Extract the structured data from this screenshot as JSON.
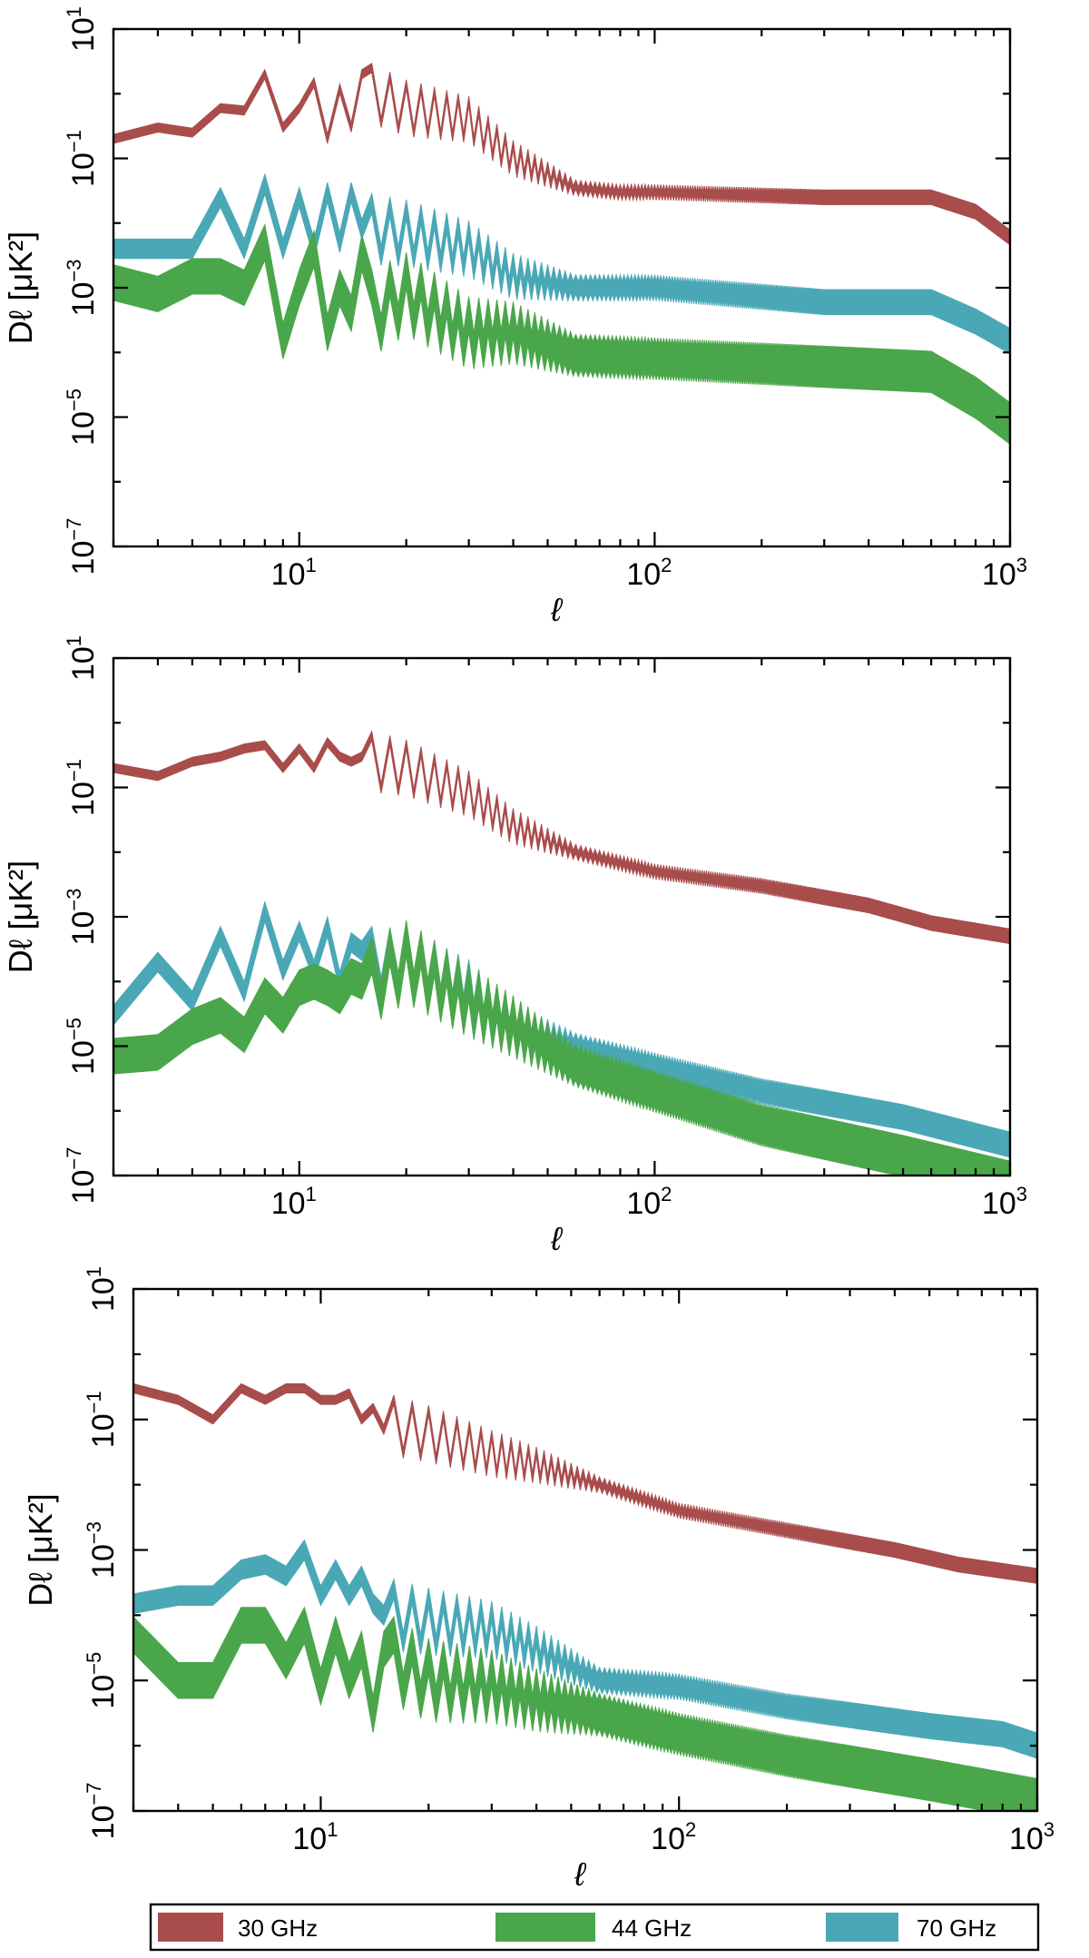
{
  "figure": {
    "legend": [
      {
        "label": "30 GHz",
        "color": "#a84c4c"
      },
      {
        "label": "44 GHz",
        "color": "#4aa64a"
      },
      {
        "label": "70 GHz",
        "color": "#4aa8b6"
      }
    ]
  },
  "chart_data": [
    {
      "type": "area",
      "title": "",
      "xlabel": "ℓ",
      "ylabel": "Dℓ [μK²]",
      "xscale": "log",
      "yscale": "log",
      "xlim": [
        3,
        1000
      ],
      "ylim": [
        1e-07,
        10
      ],
      "xticks": [
        {
          "base": "10",
          "exp": "1",
          "v": 10
        },
        {
          "base": "10",
          "exp": "2",
          "v": 100
        },
        {
          "base": "10",
          "exp": "3",
          "v": 1000
        }
      ],
      "yticks": [
        {
          "base": "10",
          "exp": "1",
          "v": 10
        },
        {
          "base": "10",
          "exp": "−1",
          "v": 0.1
        },
        {
          "base": "10",
          "exp": "−3",
          "v": 0.001
        },
        {
          "base": "10",
          "exp": "−5",
          "v": 1e-05
        },
        {
          "base": "10",
          "exp": "−7",
          "v": 1e-07
        }
      ],
      "series": [
        {
          "name": "30 GHz",
          "color": "#a84c4c",
          "lowell": [
            0.2,
            0.3,
            0.25,
            0.6,
            0.55,
            2.0,
            0.3,
            0.6,
            1.5,
            0.2,
            1.2,
            0.3,
            2.0
          ],
          "logband": 0.14,
          "startOsc": 16,
          "ctrl": [
            [
              16,
              1.0
            ],
            [
              20,
              0.6
            ],
            [
              30,
              0.4
            ],
            [
              40,
              0.1
            ],
            [
              60,
              0.035
            ],
            [
              80,
              0.03
            ],
            [
              100,
              0.03
            ],
            [
              300,
              0.025
            ],
            [
              600,
              0.025
            ],
            [
              800,
              0.015
            ],
            [
              1000,
              0.006
            ]
          ]
        },
        {
          "name": "70 GHz",
          "color": "#4aa8b6",
          "lowell": [
            0.004,
            0.004,
            0.004,
            0.025,
            0.004,
            0.04,
            0.004,
            0.025,
            0.004,
            0.03,
            0.005,
            0.03,
            0.008
          ],
          "logband": 0.3,
          "startOsc": 16,
          "ctrl": [
            [
              16,
              0.008
            ],
            [
              20,
              0.007
            ],
            [
              30,
              0.004
            ],
            [
              40,
              0.0015
            ],
            [
              60,
              0.001
            ],
            [
              100,
              0.001
            ],
            [
              300,
              0.0006
            ],
            [
              600,
              0.0006
            ],
            [
              800,
              0.0003
            ],
            [
              1000,
              0.00015
            ]
          ]
        },
        {
          "name": "44 GHz",
          "color": "#4aa64a",
          "lowell": [
            0.0012,
            0.0008,
            0.0015,
            0.0015,
            0.001,
            0.005,
            0.00015,
            0.001,
            0.004,
            0.0002,
            0.001,
            0.0004,
            0.0035
          ],
          "logband": 0.55,
          "startOsc": 16,
          "ctrl": [
            [
              16,
              0.0004
            ],
            [
              20,
              0.0008
            ],
            [
              30,
              0.0002
            ],
            [
              40,
              0.0002
            ],
            [
              60,
              9e-05
            ],
            [
              100,
              8e-05
            ],
            [
              300,
              6e-05
            ],
            [
              600,
              5e-05
            ],
            [
              800,
              2e-05
            ],
            [
              1000,
              8e-06
            ]
          ]
        }
      ]
    },
    {
      "type": "area",
      "title": "",
      "xlabel": "ℓ",
      "ylabel": "Dℓ [μK²]",
      "xscale": "log",
      "yscale": "log",
      "xlim": [
        3,
        1000
      ],
      "ylim": [
        1e-07,
        10
      ],
      "xticks": [
        {
          "base": "10",
          "exp": "1",
          "v": 10
        },
        {
          "base": "10",
          "exp": "2",
          "v": 100
        },
        {
          "base": "10",
          "exp": "3",
          "v": 1000
        }
      ],
      "yticks": [
        {
          "base": "10",
          "exp": "1",
          "v": 10
        },
        {
          "base": "10",
          "exp": "−1",
          "v": 0.1
        },
        {
          "base": "10",
          "exp": "−3",
          "v": 0.001
        },
        {
          "base": "10",
          "exp": "−5",
          "v": 1e-05
        },
        {
          "base": "10",
          "exp": "−7",
          "v": 1e-07
        }
      ],
      "series": [
        {
          "name": "30 GHz",
          "color": "#a84c4c",
          "lowell": [
            0.2,
            0.15,
            0.25,
            0.3,
            0.4,
            0.45,
            0.2,
            0.4,
            0.2,
            0.5,
            0.3,
            0.25,
            0.3
          ],
          "logband": 0.14,
          "startOsc": 16,
          "ctrl": [
            [
              16,
              0.25
            ],
            [
              20,
              0.2
            ],
            [
              30,
              0.08
            ],
            [
              40,
              0.025
            ],
            [
              60,
              0.01
            ],
            [
              100,
              0.005
            ],
            [
              200,
              0.003
            ],
            [
              400,
              0.0015
            ],
            [
              600,
              0.0008
            ],
            [
              1000,
              0.0005
            ]
          ]
        },
        {
          "name": "70 GHz",
          "color": "#4aa8b6",
          "lowell": [
            3e-05,
            0.0002,
            5e-05,
            0.0005,
            7e-05,
            0.0012,
            0.00015,
            0.0006,
            0.00015,
            0.0007,
            0.0001,
            0.0004,
            0.0003
          ],
          "logband": 0.3,
          "startOsc": 16,
          "ctrl": [
            [
              16,
              0.0002
            ],
            [
              20,
              0.0002
            ],
            [
              30,
              8e-05
            ],
            [
              40,
              2e-05
            ],
            [
              60,
              1e-05
            ],
            [
              100,
              5e-06
            ],
            [
              200,
              2e-06
            ],
            [
              500,
              8e-07
            ],
            [
              1000,
              3e-07
            ]
          ]
        },
        {
          "name": "44 GHz",
          "color": "#4aa64a",
          "lowell": [
            7e-06,
            8e-06,
            2e-05,
            3e-05,
            1.5e-05,
            6e-05,
            3e-05,
            8e-05,
            0.0001,
            8e-05,
            6e-05,
            0.00012,
            0.0001
          ],
          "logband": 0.55,
          "startOsc": 16,
          "ctrl": [
            [
              16,
              0.0001
            ],
            [
              20,
              0.0002
            ],
            [
              30,
              5e-05
            ],
            [
              40,
              2e-05
            ],
            [
              60,
              5e-06
            ],
            [
              100,
              2e-06
            ],
            [
              200,
              6e-07
            ],
            [
              500,
              2e-07
            ],
            [
              1000,
              8e-08
            ]
          ]
        }
      ]
    },
    {
      "type": "area",
      "title": "",
      "xlabel": "ℓ",
      "ylabel": "Dℓ [μK²]",
      "xscale": "log",
      "yscale": "log",
      "xlim": [
        3,
        1000
      ],
      "ylim": [
        1e-07,
        10
      ],
      "xticks": [
        {
          "base": "10",
          "exp": "1",
          "v": 10
        },
        {
          "base": "10",
          "exp": "2",
          "v": 100
        },
        {
          "base": "10",
          "exp": "3",
          "v": 1000
        }
      ],
      "yticks": [
        {
          "base": "10",
          "exp": "1",
          "v": 10
        },
        {
          "base": "10",
          "exp": "−1",
          "v": 0.1
        },
        {
          "base": "10",
          "exp": "−3",
          "v": 0.001
        },
        {
          "base": "10",
          "exp": "−5",
          "v": 1e-05
        },
        {
          "base": "10",
          "exp": "−7",
          "v": 1e-07
        }
      ],
      "series": [
        {
          "name": "30 GHz",
          "color": "#a84c4c",
          "lowell": [
            0.3,
            0.2,
            0.1,
            0.3,
            0.2,
            0.3,
            0.3,
            0.2,
            0.2,
            0.25,
            0.1,
            0.15,
            0.07
          ],
          "logband": 0.14,
          "startOsc": 16,
          "ctrl": [
            [
              16,
              0.08
            ],
            [
              20,
              0.06
            ],
            [
              30,
              0.03
            ],
            [
              40,
              0.02
            ],
            [
              60,
              0.01
            ],
            [
              100,
              0.004
            ],
            [
              200,
              0.002
            ],
            [
              400,
              0.001
            ],
            [
              600,
              0.0006
            ],
            [
              1000,
              0.0004
            ]
          ]
        },
        {
          "name": "70 GHz",
          "color": "#4aa8b6",
          "lowell": [
            0.00015,
            0.0002,
            0.0002,
            0.0005,
            0.0006,
            0.0004,
            0.001,
            0.0002,
            0.0005,
            0.0002,
            0.0004,
            0.00015,
            0.0001
          ],
          "logband": 0.3,
          "startOsc": 16,
          "ctrl": [
            [
              16,
              0.0001
            ],
            [
              20,
              8e-05
            ],
            [
              30,
              6e-05
            ],
            [
              40,
              3e-05
            ],
            [
              60,
              1e-05
            ],
            [
              100,
              8e-06
            ],
            [
              200,
              4e-06
            ],
            [
              500,
              2e-06
            ],
            [
              800,
              1.5e-06
            ],
            [
              1000,
              1e-06
            ]
          ]
        },
        {
          "name": "44 GHz",
          "color": "#4aa64a",
          "lowell": [
            5e-05,
            1e-05,
            1e-05,
            7e-05,
            7e-05,
            2e-05,
            7e-05,
            8e-06,
            5e-05,
            1e-05,
            3e-05,
            3e-06,
            3e-05
          ],
          "logband": 0.55,
          "startOsc": 16,
          "ctrl": [
            [
              16,
              2e-05
            ],
            [
              20,
              1e-05
            ],
            [
              30,
              8e-06
            ],
            [
              40,
              5e-06
            ],
            [
              60,
              3e-06
            ],
            [
              100,
              1.5e-06
            ],
            [
              200,
              7e-07
            ],
            [
              500,
              3e-07
            ],
            [
              1000,
              1.5e-07
            ]
          ]
        }
      ]
    }
  ]
}
